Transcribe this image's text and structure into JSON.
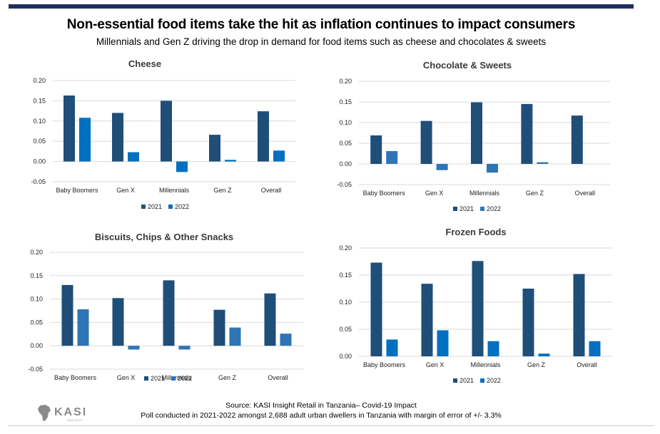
{
  "header": {
    "title": "Non-essential food items take the hit as inflation continues to impact consumers",
    "subtitle": "Millennials and Gen Z driving the drop in demand for food items such as cheese and chocolates & sweets"
  },
  "footer": {
    "source": "Source: KASI Insight Retail in Tanzania– Covid-19 Impact",
    "poll": "Poll conducted in 2021-2022 amongst 2,688 adult urban dwellers in Tanzania with margin of error of +/- 3.3%",
    "logo_text": "KASI",
    "logo_tagline": "INSIGHT"
  },
  "colors": {
    "s2021": "#1f4e79",
    "s2022": "#0070c0",
    "s2022_alt": "#2e75b6"
  },
  "chart_data": [
    {
      "type": "bar",
      "title": "Cheese",
      "categories": [
        "Baby Boomers",
        "Gen X",
        "Millennials",
        "Gen Z",
        "Overall"
      ],
      "series": [
        {
          "name": "2021",
          "values": [
            0.163,
            0.12,
            0.15,
            0.066,
            0.124
          ]
        },
        {
          "name": "2022",
          "values": [
            0.108,
            0.023,
            -0.026,
            0.004,
            0.027
          ]
        }
      ],
      "yticks": [
        "0.20",
        "0.15",
        "0.10",
        "0.05",
        "0.00",
        "-0.05"
      ],
      "ylim": [
        -0.05,
        0.2
      ],
      "legend": "bottom-center",
      "grid": true
    },
    {
      "type": "bar",
      "title": "Chocolate & Sweets",
      "categories": [
        "Baby Boomers",
        "Gen X",
        "Millennials",
        "Gen Z",
        "Overall"
      ],
      "series": [
        {
          "name": "2021",
          "values": [
            0.069,
            0.104,
            0.149,
            0.145,
            0.117
          ]
        },
        {
          "name": "2022",
          "values": [
            0.031,
            -0.015,
            -0.021,
            0.004,
            0.0
          ]
        }
      ],
      "yticks": [
        "0.20",
        "0.15",
        "0.10",
        "0.05",
        "0.00",
        "-0.05"
      ],
      "ylim": [
        -0.05,
        0.2
      ],
      "legend": "bottom-center",
      "grid": true
    },
    {
      "type": "bar",
      "title": "Biscuits, Chips & Other Snacks",
      "categories": [
        "Baby Boomers",
        "Gen X",
        "Millennials",
        "Gen Z",
        "Overall"
      ],
      "series": [
        {
          "name": "2021",
          "values": [
            0.13,
            0.102,
            0.14,
            0.077,
            0.112
          ]
        },
        {
          "name": "2022",
          "values": [
            0.078,
            -0.008,
            -0.008,
            0.039,
            0.026
          ]
        }
      ],
      "yticks": [
        "0.20",
        "0.15",
        "0.10",
        "0.05",
        "0.00",
        "-0.05"
      ],
      "ylim": [
        -0.05,
        0.2
      ],
      "legend": "bottom-center",
      "grid": true
    },
    {
      "type": "bar",
      "title": "Frozen Foods",
      "categories": [
        "Baby Boomers",
        "Gen X",
        "Millennials",
        "Gen Z",
        "Overall"
      ],
      "series": [
        {
          "name": "2021",
          "values": [
            0.173,
            0.134,
            0.176,
            0.125,
            0.152
          ]
        },
        {
          "name": "2022",
          "values": [
            0.031,
            0.048,
            0.028,
            0.005,
            0.028
          ]
        }
      ],
      "yticks": [
        "0.20",
        "0.15",
        "0.10",
        "0.05",
        "0.00"
      ],
      "ylim": [
        0,
        0.2
      ],
      "legend": "bottom-center",
      "grid": true
    }
  ]
}
